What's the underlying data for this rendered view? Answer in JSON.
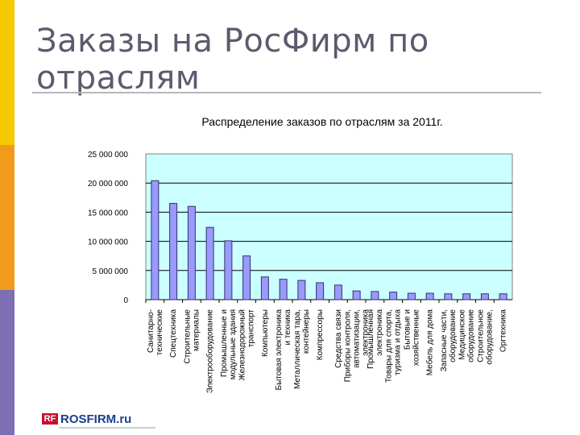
{
  "slide": {
    "title": "Заказы на РосФирм по отраслям",
    "logo_mark": "RF",
    "logo_text": "ROSFIRM.ru"
  },
  "colors": {
    "bar": "#9999ff",
    "plot_bg": "#ccffff",
    "accent_yellow": "#f5c800",
    "accent_orange": "#f29a1c",
    "accent_purple": "#7d6fb3",
    "logo_red": "#c8102e",
    "logo_blue": "#1a3e8c"
  },
  "chart_data": {
    "type": "bar",
    "title": "Распределение заказов по отраслям за 2011г.",
    "xlabel": "",
    "ylabel": "",
    "ylim": [
      0,
      25000000
    ],
    "yticks": [
      "0",
      "5 000 000",
      "10 000 000",
      "15 000 000",
      "20 000 000",
      "25 000 000"
    ],
    "grid": true,
    "legend": false,
    "categories": [
      [
        "Санитарно-",
        "технические"
      ],
      [
        "Спецтехника"
      ],
      [
        "Строительные",
        "материалы"
      ],
      [
        "Электрооборудование"
      ],
      [
        "Промышленные и",
        "модульные здания"
      ],
      [
        "Железнодорожный",
        "транспорт"
      ],
      [
        "Компьютеры"
      ],
      [
        "Бытовая электроника",
        "и техника"
      ],
      [
        "Металлическая тара,",
        "контейнеры"
      ],
      [
        "Компрессоры"
      ],
      [
        "Средства связи"
      ],
      [
        "Приборы контроля,",
        "автоматизации,",
        "электроника"
      ],
      [
        "Промышленная",
        "электроника"
      ],
      [
        "Товары для спорта,",
        "туризма и отдыха"
      ],
      [
        "Бытовые и",
        "хозяйственные"
      ],
      [
        "Мебель для дома"
      ],
      [
        "Запасные части,",
        "оборудование"
      ],
      [
        "Медицинское",
        "оборудование"
      ],
      [
        "Строительное",
        "оборудование,"
      ],
      [
        "Оргтехника"
      ]
    ],
    "values": [
      20400000,
      16500000,
      16000000,
      12400000,
      10100000,
      7500000,
      3900000,
      3500000,
      3300000,
      2900000,
      2500000,
      1500000,
      1400000,
      1300000,
      1100000,
      1100000,
      1000000,
      1000000,
      1000000,
      1000000
    ]
  }
}
